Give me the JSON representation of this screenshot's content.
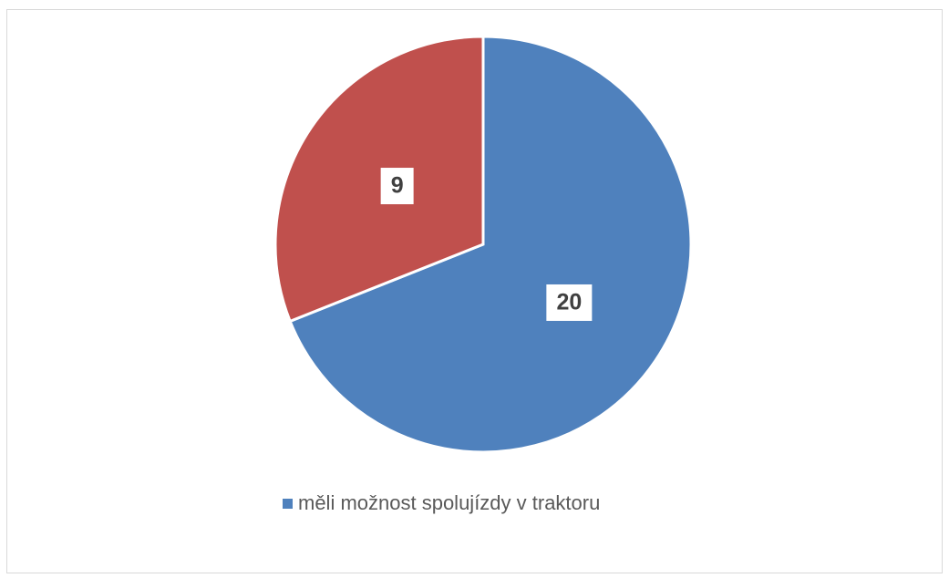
{
  "chart_data": {
    "type": "pie",
    "categories": [
      "měli možnost spolujízdy v traktoru",
      null
    ],
    "values": [
      20,
      9
    ],
    "colors": [
      "#4f81bd",
      "#c0504d"
    ],
    "legend": "bottom"
  }
}
